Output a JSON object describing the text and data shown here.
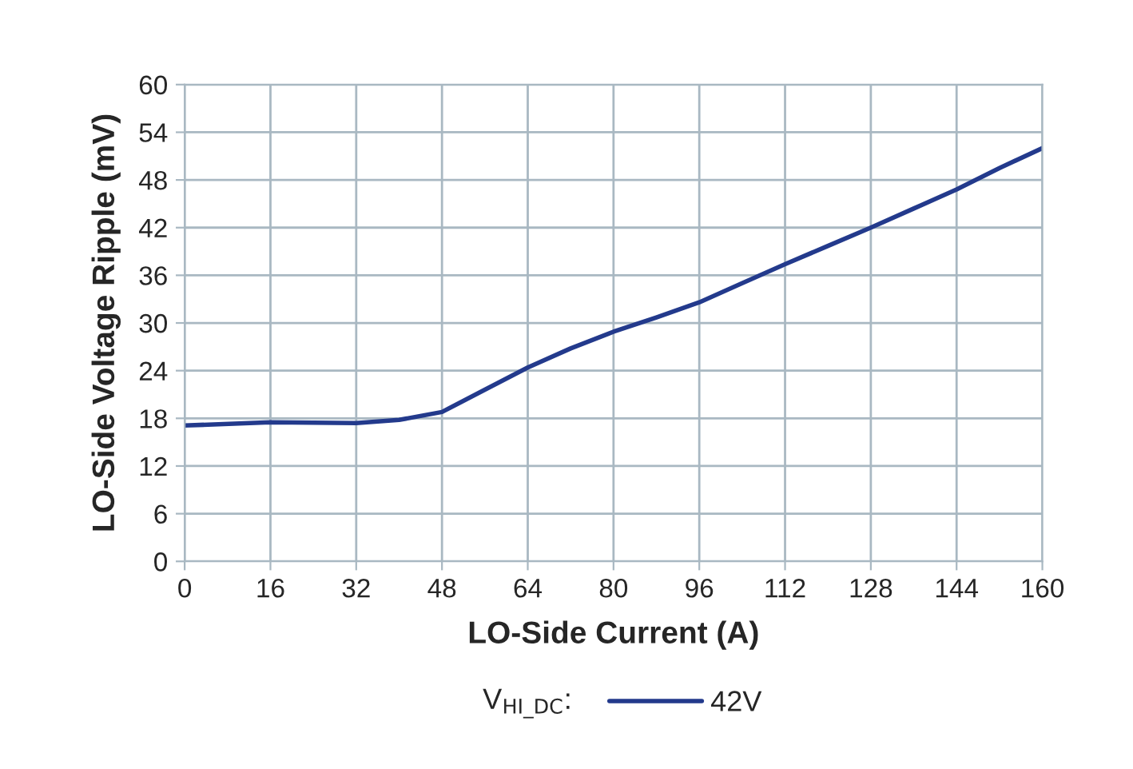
{
  "chart_data": {
    "type": "line",
    "xlabel": "LO-Side Current (A)",
    "ylabel": "LO-Side Voltage Ripple (mV)",
    "legend_title": "V$_{HI_DC}$:",
    "x": [
      0,
      16,
      32,
      40,
      48,
      56,
      64,
      72,
      80,
      88,
      96,
      104,
      112,
      120,
      128,
      136,
      144,
      152,
      160
    ],
    "series": [
      {
        "name": "42V",
        "color": "#233a8c",
        "values": [
          17.1,
          17.5,
          17.4,
          17.8,
          18.8,
          21.6,
          24.4,
          26.8,
          28.9,
          30.7,
          32.6,
          35.0,
          37.4,
          39.7,
          42.0,
          44.4,
          46.8,
          49.5,
          52.0
        ]
      }
    ],
    "xlim": [
      0,
      160
    ],
    "xticks": [
      0,
      16,
      32,
      48,
      64,
      80,
      96,
      112,
      128,
      144,
      160
    ],
    "ylim": [
      0,
      60
    ],
    "yticks": [
      0,
      6,
      12,
      18,
      24,
      30,
      36,
      42,
      48,
      54,
      60
    ],
    "grid": true,
    "legend": "bottom",
    "marker": "none",
    "line_style": "solid"
  }
}
